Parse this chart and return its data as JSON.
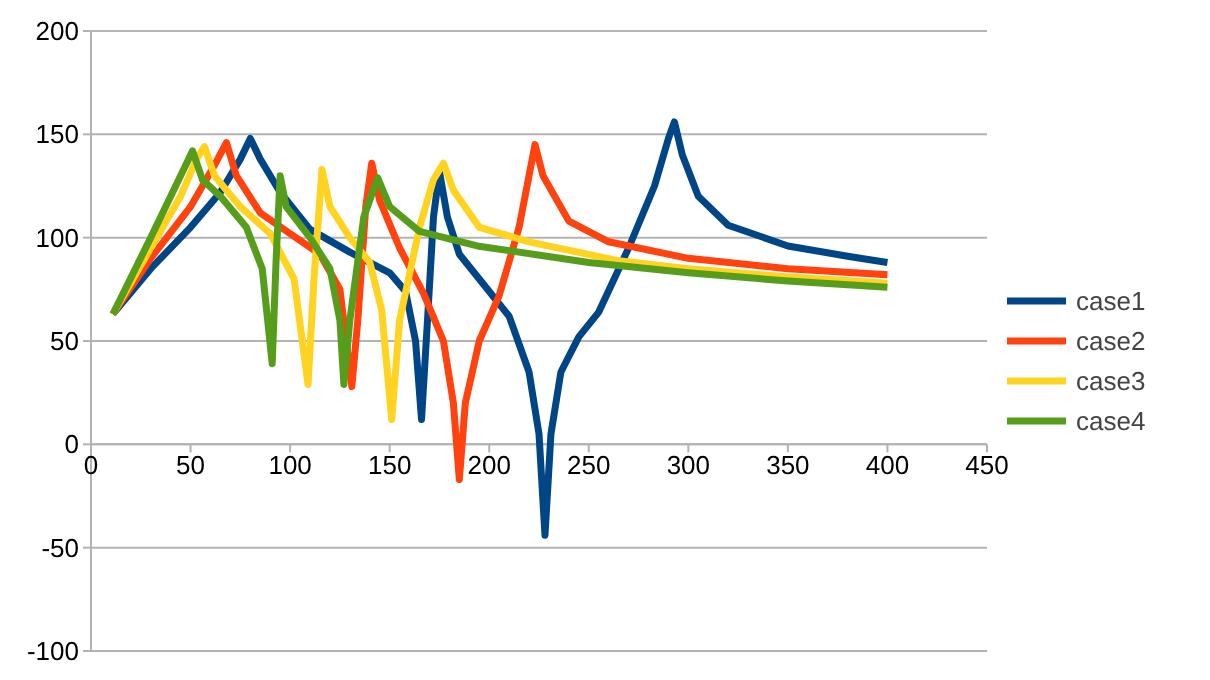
{
  "chart_data": {
    "type": "line",
    "xlim": [
      0,
      450
    ],
    "ylim": [
      -100,
      200
    ],
    "xticks": [
      0,
      50,
      100,
      150,
      200,
      250,
      300,
      350,
      400,
      450
    ],
    "yticks": [
      -100,
      -50,
      0,
      50,
      100,
      150,
      200
    ],
    "grid": "y",
    "legend": "right",
    "marker": "none",
    "line_style": "solid",
    "series": [
      {
        "name": "case1",
        "color": "#004586",
        "x": [
          11,
          30,
          50,
          65,
          75,
          80,
          85,
          95,
          110,
          130,
          150,
          158,
          163,
          166,
          169,
          172,
          175,
          179,
          185,
          195,
          210,
          220,
          225,
          228,
          231,
          236,
          245,
          255,
          270,
          283,
          290,
          293,
          297,
          305,
          320,
          350,
          380,
          400
        ],
        "values": [
          63,
          85,
          105,
          122,
          138,
          148,
          138,
          122,
          104,
          93,
          83,
          74,
          50,
          12,
          60,
          110,
          132,
          110,
          92,
          80,
          62,
          35,
          5,
          -44,
          5,
          35,
          52,
          64,
          95,
          125,
          148,
          156,
          140,
          120,
          106,
          96,
          91,
          88
        ]
      },
      {
        "name": "case2",
        "color": "#ff420e",
        "x": [
          11,
          30,
          50,
          62,
          68,
          73,
          85,
          100,
          115,
          125,
          131,
          134,
          138,
          141,
          145,
          155,
          167,
          177,
          182,
          185,
          188,
          195,
          205,
          215,
          220,
          223,
          227,
          240,
          260,
          300,
          350,
          400
        ],
        "values": [
          63,
          90,
          115,
          135,
          146,
          130,
          112,
          102,
          92,
          75,
          28,
          60,
          115,
          136,
          118,
          95,
          73,
          50,
          20,
          -17,
          20,
          50,
          72,
          105,
          130,
          145,
          130,
          108,
          98,
          90,
          85,
          82
        ]
      },
      {
        "name": "case3",
        "color": "#ffd320",
        "x": [
          11,
          30,
          45,
          53,
          57,
          62,
          75,
          90,
          102,
          109,
          112,
          116,
          120,
          130,
          140,
          146,
          151,
          155,
          165,
          172,
          177,
          182,
          195,
          220,
          264,
          300,
          350,
          400
        ],
        "values": [
          63,
          95,
          120,
          138,
          144,
          130,
          115,
          102,
          80,
          29,
          80,
          133,
          115,
          100,
          88,
          65,
          12,
          60,
          105,
          128,
          136,
          123,
          105,
          98,
          89,
          85,
          81,
          78
        ]
      },
      {
        "name": "case4",
        "color": "#579d1c",
        "x": [
          11,
          30,
          45,
          51,
          56,
          65,
          78,
          86,
          91,
          93,
          95,
          98,
          110,
          120,
          125,
          127,
          130,
          137,
          144,
          150,
          165,
          194,
          250,
          300,
          350,
          400
        ],
        "values": [
          63,
          100,
          130,
          142,
          128,
          120,
          105,
          85,
          39,
          90,
          130,
          115,
          100,
          85,
          60,
          29,
          60,
          110,
          129,
          115,
          103,
          96,
          88,
          83,
          79,
          76
        ]
      }
    ]
  }
}
